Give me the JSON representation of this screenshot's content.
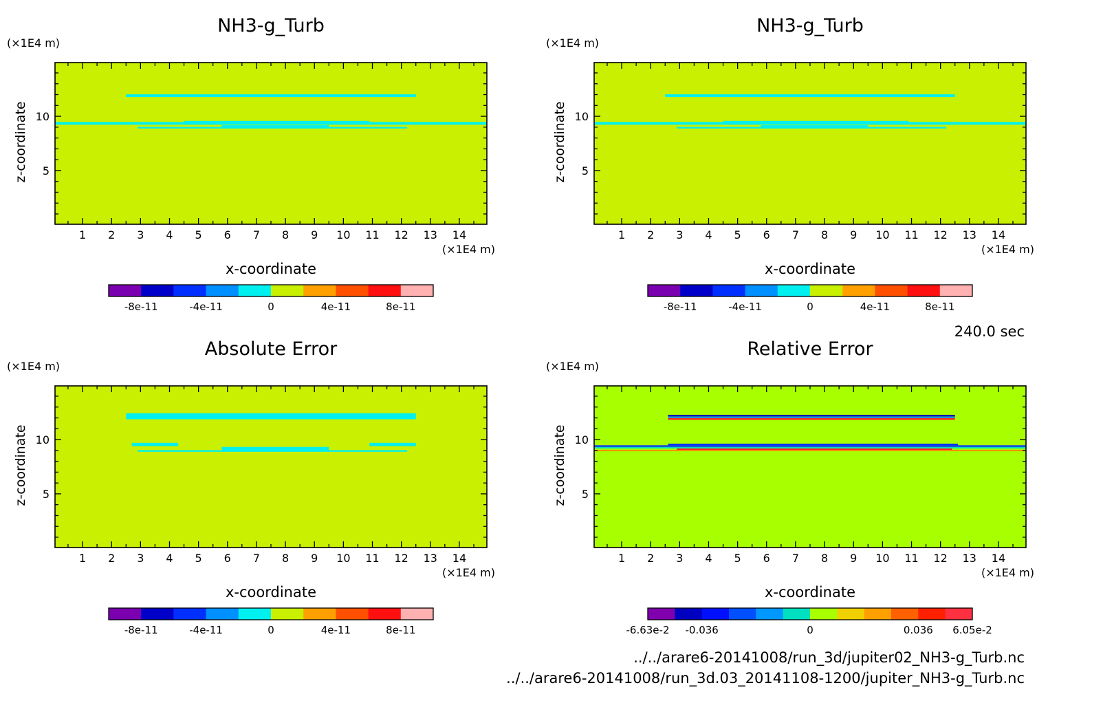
{
  "time_label": "240.0 sec",
  "files": [
    "../../arare6-20141008/run_3d/jupiter02_NH3-g_Turb.nc",
    "../../arare6-20141008/run_3d.03_20141108-1200/jupiter_NH3-g_Turb.nc"
  ],
  "chart_data": [
    {
      "type": "heatmap",
      "title": "NH3-g_Turb",
      "xlabel": "x-coordinate",
      "ylabel": "z-coordinate",
      "x_unit": "(×1E4 m)",
      "y_unit": "(×1E4 m)",
      "xlim": [
        0.05,
        14.95
      ],
      "ylim": [
        0.05,
        14.95
      ],
      "x_ticks": [
        1,
        2,
        3,
        4,
        5,
        6,
        7,
        8,
        9,
        10,
        11,
        12,
        13,
        14
      ],
      "y_ticks": [
        5,
        10
      ],
      "background_color": "#c8f000",
      "features": [
        {
          "shape": "hline",
          "y": 11.9,
          "x": [
            2.5,
            12.5
          ],
          "thickness": 0.25,
          "color": "#00f0f0"
        },
        {
          "shape": "hline",
          "y": 9.35,
          "x": [
            0.05,
            14.95
          ],
          "thickness": 0.25,
          "color": "#00f0f0"
        },
        {
          "shape": "hline",
          "y": 9.5,
          "x": [
            4.5,
            10.9
          ],
          "thickness": 0.15,
          "color": "#00f0f0"
        },
        {
          "shape": "hline",
          "y": 8.95,
          "x": [
            2.9,
            12.2
          ],
          "thickness": 0.15,
          "color": "#00f0f0"
        },
        {
          "shape": "hline",
          "y": 9.1,
          "x": [
            5.8,
            9.5
          ],
          "thickness": 0.15,
          "color": "#00f0f0"
        }
      ],
      "colorbar": {
        "colors": [
          "#7a00b0",
          "#0000c8",
          "#0030ff",
          "#0090ff",
          "#00f0f0",
          "#c8f000",
          "#ffa000",
          "#ff5000",
          "#ff1010",
          "#ffb0b0"
        ],
        "tick_labels": [
          "-8e-11",
          "-4e-11",
          "0",
          "4e-11",
          "8e-11"
        ],
        "tick_boundaries": [
          1,
          3,
          5,
          7,
          9
        ]
      }
    },
    {
      "type": "heatmap",
      "title": "NH3-g_Turb",
      "xlabel": "x-coordinate",
      "ylabel": "z-coordinate",
      "x_unit": "(×1E4 m)",
      "y_unit": "(×1E4 m)",
      "xlim": [
        0.05,
        14.95
      ],
      "ylim": [
        0.05,
        14.95
      ],
      "x_ticks": [
        1,
        2,
        3,
        4,
        5,
        6,
        7,
        8,
        9,
        10,
        11,
        12,
        13,
        14
      ],
      "y_ticks": [
        5,
        10
      ],
      "background_color": "#c8f000",
      "features": [
        {
          "shape": "hline",
          "y": 11.9,
          "x": [
            2.5,
            12.5
          ],
          "thickness": 0.25,
          "color": "#00f0f0"
        },
        {
          "shape": "hline",
          "y": 9.35,
          "x": [
            0.05,
            14.95
          ],
          "thickness": 0.25,
          "color": "#00f0f0"
        },
        {
          "shape": "hline",
          "y": 9.5,
          "x": [
            4.5,
            10.9
          ],
          "thickness": 0.15,
          "color": "#00f0f0"
        },
        {
          "shape": "hline",
          "y": 8.95,
          "x": [
            2.9,
            12.2
          ],
          "thickness": 0.15,
          "color": "#00f0f0"
        },
        {
          "shape": "hline",
          "y": 9.1,
          "x": [
            5.8,
            9.5
          ],
          "thickness": 0.15,
          "color": "#00f0f0"
        }
      ],
      "colorbar": {
        "colors": [
          "#7a00b0",
          "#0000c8",
          "#0030ff",
          "#0090ff",
          "#00f0f0",
          "#c8f000",
          "#ffa000",
          "#ff5000",
          "#ff1010",
          "#ffb0b0"
        ],
        "tick_labels": [
          "-8e-11",
          "-4e-11",
          "0",
          "4e-11",
          "8e-11"
        ],
        "tick_boundaries": [
          1,
          3,
          5,
          7,
          9
        ]
      }
    },
    {
      "type": "heatmap",
      "title": "Absolute Error",
      "xlabel": "x-coordinate",
      "ylabel": "z-coordinate",
      "x_unit": "(×1E4 m)",
      "y_unit": "(×1E4 m)",
      "xlim": [
        0.05,
        14.95
      ],
      "ylim": [
        0.05,
        14.95
      ],
      "x_ticks": [
        1,
        2,
        3,
        4,
        5,
        6,
        7,
        8,
        9,
        10,
        11,
        12,
        13,
        14
      ],
      "y_ticks": [
        5,
        10
      ],
      "background_color": "#c8f000",
      "features": [
        {
          "shape": "hline",
          "y": 12.15,
          "x": [
            2.5,
            12.5
          ],
          "thickness": 0.55,
          "color": "#00f0f0"
        },
        {
          "shape": "hline",
          "y": 9.55,
          "x": [
            2.7,
            4.3
          ],
          "thickness": 0.3,
          "color": "#00f0f0"
        },
        {
          "shape": "hline",
          "y": 9.55,
          "x": [
            10.9,
            12.5
          ],
          "thickness": 0.3,
          "color": "#00f0f0"
        },
        {
          "shape": "hline",
          "y": 9.15,
          "x": [
            5.8,
            9.5
          ],
          "thickness": 0.35,
          "color": "#00f0f0"
        },
        {
          "shape": "hline",
          "y": 8.95,
          "x": [
            2.9,
            12.2
          ],
          "thickness": 0.15,
          "color": "#00f0f0"
        }
      ],
      "colorbar": {
        "colors": [
          "#7a00b0",
          "#0000c8",
          "#0030ff",
          "#0090ff",
          "#00f0f0",
          "#c8f000",
          "#ffa000",
          "#ff5000",
          "#ff1010",
          "#ffb0b0"
        ],
        "tick_labels": [
          "-8e-11",
          "-4e-11",
          "0",
          "4e-11",
          "8e-11"
        ],
        "tick_boundaries": [
          1,
          3,
          5,
          7,
          9
        ]
      }
    },
    {
      "type": "heatmap",
      "title": "Relative Error",
      "xlabel": "x-coordinate",
      "ylabel": "z-coordinate",
      "x_unit": "(×1E4 m)",
      "y_unit": "(×1E4 m)",
      "xlim": [
        0.05,
        14.95
      ],
      "ylim": [
        0.05,
        14.95
      ],
      "x_ticks": [
        1,
        2,
        3,
        4,
        5,
        6,
        7,
        8,
        9,
        10,
        11,
        12,
        13,
        14
      ],
      "y_ticks": [
        5,
        10
      ],
      "background_color": "#a8ff00",
      "features": [
        {
          "shape": "hline",
          "y": 12.2,
          "x": [
            2.6,
            12.5
          ],
          "thickness": 0.15,
          "color": "#0000c8"
        },
        {
          "shape": "hline",
          "y": 12.05,
          "x": [
            2.6,
            12.5
          ],
          "thickness": 0.12,
          "color": "#0090ff"
        },
        {
          "shape": "hline",
          "y": 11.9,
          "x": [
            2.6,
            12.5
          ],
          "thickness": 0.15,
          "color": "#ff2020"
        },
        {
          "shape": "hline",
          "y": 9.55,
          "x": [
            2.6,
            12.6
          ],
          "thickness": 0.15,
          "color": "#0030ff"
        },
        {
          "shape": "hline",
          "y": 9.4,
          "x": [
            0.05,
            14.95
          ],
          "thickness": 0.15,
          "color": "#0030ff"
        },
        {
          "shape": "hline",
          "y": 9.25,
          "x": [
            0.05,
            14.95
          ],
          "thickness": 0.12,
          "color": "#00e0c0"
        },
        {
          "shape": "hline",
          "y": 9.1,
          "x": [
            2.9,
            12.4
          ],
          "thickness": 0.15,
          "color": "#ff2020"
        },
        {
          "shape": "hline",
          "y": 9.0,
          "x": [
            0.05,
            14.95
          ],
          "thickness": 0.1,
          "color": "#ff9000"
        }
      ],
      "colorbar": {
        "colors": [
          "#8000b0",
          "#0000c0",
          "#0010ff",
          "#0050ff",
          "#0098ff",
          "#00e0c0",
          "#a8ff00",
          "#f0d000",
          "#ffa000",
          "#ff6000",
          "#ff2000",
          "#ff3040"
        ],
        "tick_labels": [
          "-6.63e-2",
          "-0.036",
          "0",
          "0.036",
          "6.05e-2"
        ],
        "tick_boundaries": [
          0,
          2,
          6,
          10,
          12
        ]
      }
    }
  ]
}
